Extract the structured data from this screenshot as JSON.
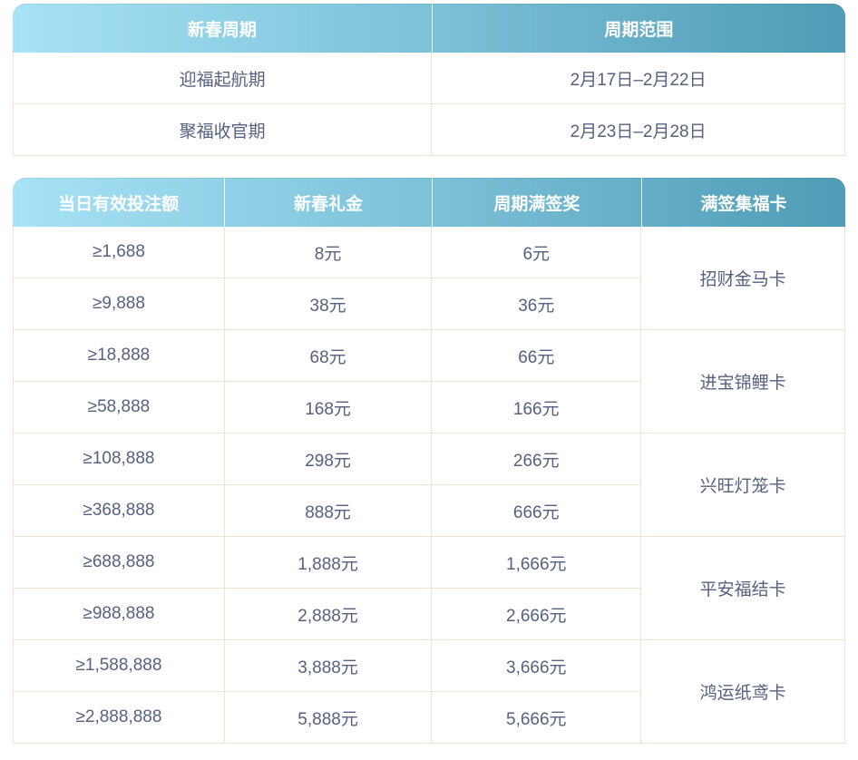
{
  "colors": {
    "header_gradient_start": "#a7e2f6",
    "header_gradient_end": "#4e9cb5",
    "header_text": "#ffffff",
    "body_text": "#57617f",
    "border": "#f1e2d1"
  },
  "cycle_table": {
    "headers": [
      "新春周期",
      "周期范围"
    ],
    "rows": [
      {
        "name": "迎福起航期",
        "range": "2月17日–2月22日"
      },
      {
        "name": "聚福收官期",
        "range": "2月23日–2月28日"
      }
    ]
  },
  "bonus_table": {
    "headers": [
      "当日有效投注额",
      "新春礼金",
      "周期满签奖",
      "满签集福卡"
    ],
    "rows": [
      {
        "bet": "≥1,688",
        "gift": "8元",
        "award": "6元"
      },
      {
        "bet": "≥9,888",
        "gift": "38元",
        "award": "36元"
      },
      {
        "bet": "≥18,888",
        "gift": "68元",
        "award": "66元"
      },
      {
        "bet": "≥58,888",
        "gift": "168元",
        "award": "166元"
      },
      {
        "bet": "≥108,888",
        "gift": "298元",
        "award": "266元"
      },
      {
        "bet": "≥368,888",
        "gift": "888元",
        "award": "666元"
      },
      {
        "bet": "≥688,888",
        "gift": "1,888元",
        "award": "1,666元"
      },
      {
        "bet": "≥988,888",
        "gift": "2,888元",
        "award": "2,666元"
      },
      {
        "bet": "≥1,588,888",
        "gift": "3,888元",
        "award": "3,666元"
      },
      {
        "bet": "≥2,888,888",
        "gift": "5,888元",
        "award": "5,666元"
      }
    ],
    "card_groups": [
      {
        "label": "招财金马卡"
      },
      {
        "label": "进宝锦鲤卡"
      },
      {
        "label": "兴旺灯笼卡"
      },
      {
        "label": "平安福结卡"
      },
      {
        "label": "鸿运纸鸢卡"
      }
    ]
  }
}
